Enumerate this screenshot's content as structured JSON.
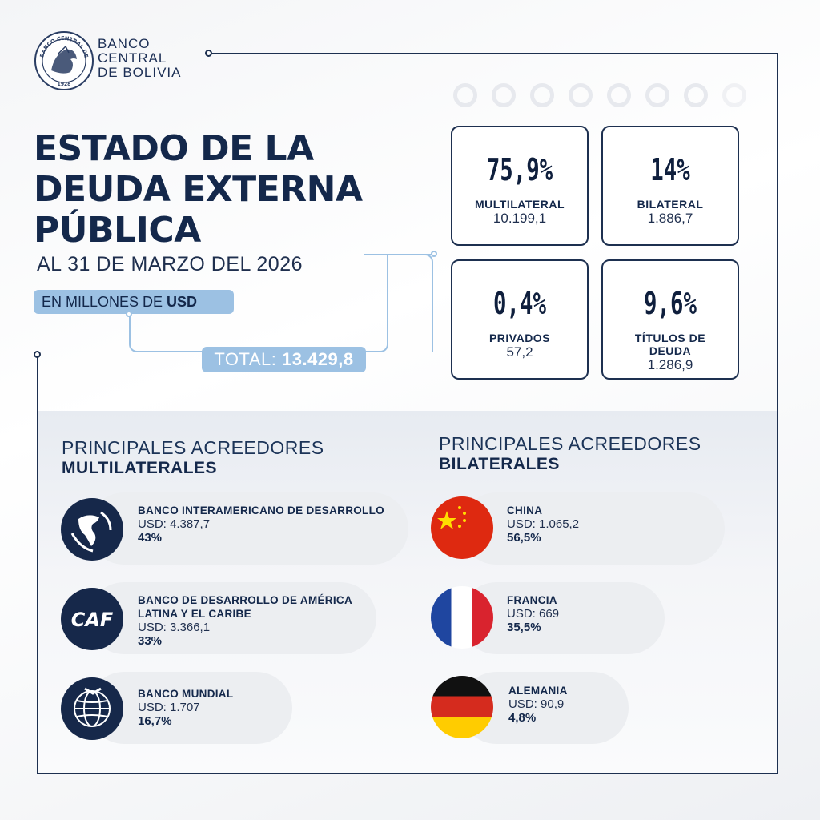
{
  "brand": {
    "seal_text": "BANCO CENTRAL DE BOLIVIA 1928",
    "name_lines": [
      "BANCO",
      "CENTRAL",
      "DE BOLIVIA"
    ]
  },
  "title": {
    "lines": [
      "ESTADO DE LA",
      "DEUDA EXTERNA",
      "PÚBLICA"
    ],
    "date": "AL 31 DE MARZO DEL 2026",
    "unit_prefix": "EN MILLONES DE ",
    "unit_strong": "USD",
    "total_label": "TOTAL: ",
    "total_value": "13.429,8"
  },
  "stats": [
    {
      "pct": "75,9%",
      "label": "MULTILATERAL",
      "value": "10.199,1"
    },
    {
      "pct": "14%",
      "label": "BILATERAL",
      "value": "1.886,7"
    },
    {
      "pct": "0,4%",
      "label": "PRIVADOS",
      "value": "57,2"
    },
    {
      "pct": "9,6%",
      "label": "TÍTULOS DE DEUDA",
      "value": "1.286,9"
    }
  ],
  "multilateral": {
    "title_light": "PRINCIPALES ACREEDORES",
    "title_strong": "MULTILATERALES",
    "items": [
      {
        "name": "BANCO INTERAMERICANO DE DESARROLLO",
        "amount": "USD: 4.387,7",
        "share": "43%",
        "icon": "americas-globe-icon"
      },
      {
        "name_line1": "BANCO DE DESARROLLO DE AMÉRICA",
        "name_line2": "LATINA Y EL CARIBE",
        "amount": "USD: 3.366,1",
        "share": "33%",
        "icon": "caf-logo-icon",
        "logo_text": "CAF"
      },
      {
        "name": "BANCO MUNDIAL",
        "amount": "USD: 1.707",
        "share": "16,7%",
        "icon": "world-bank-globe-icon"
      }
    ]
  },
  "bilateral": {
    "title_light": "PRINCIPALES ACREEDORES",
    "title_strong": "BILATERALES",
    "items": [
      {
        "name": "CHINA",
        "amount": "USD: 1.065,2",
        "share": "56,5%",
        "icon": "china-flag-icon"
      },
      {
        "name": "FRANCIA",
        "amount": "USD: 669",
        "share": "35,5%",
        "icon": "france-flag-icon"
      },
      {
        "name": "ALEMANIA",
        "amount": "USD: 90,9",
        "share": "4,8%",
        "icon": "germany-flag-icon"
      }
    ]
  },
  "colors": {
    "navy": "#14284b",
    "light_blue": "#9cc1e3",
    "frame": "#1d3050"
  }
}
